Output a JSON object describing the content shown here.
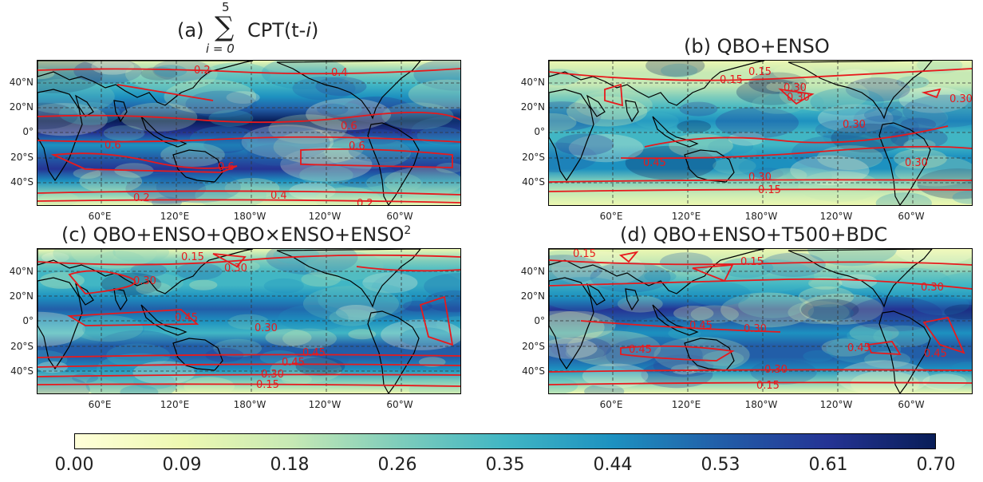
{
  "panels": [
    {
      "id": "a",
      "title_prefix": "(a)",
      "sum_upper": "5",
      "sum_lower": "i = 0",
      "sum_symbol": "∑",
      "title_suffix": "CPT(t-",
      "title_italic": "i",
      "title_end": ")"
    },
    {
      "id": "b",
      "title": "(b) QBO+ENSO"
    },
    {
      "id": "c",
      "title": "(c) QBO+ENSO+QBO×ENSO+ENSO",
      "title_sup": "2"
    },
    {
      "id": "d",
      "title": "(d) QBO+ENSO+T500+BDC"
    }
  ],
  "lat_ticks": [
    "40°N",
    "20°N",
    "0°",
    "20°S",
    "40°S"
  ],
  "lon_ticks": [
    "60°E",
    "120°E",
    "180°W",
    "120°W",
    "60°W"
  ],
  "contour_labels": {
    "a": [
      "0.2",
      "0.4",
      "0.6",
      "0.6",
      "0.6",
      "0.6",
      "0.2",
      "0.4",
      "0.2"
    ],
    "b": [
      "0.15",
      "0.15",
      "0.30",
      "0.30",
      "0.30",
      "0.30",
      "0.45",
      "0.30",
      "0.30",
      "0.15"
    ],
    "c": [
      "0.15",
      "0.30",
      "0.30",
      "0.45",
      "0.30",
      "0.45",
      "0.45",
      "0.30",
      "0.15"
    ],
    "d": [
      "0.15",
      "0.15",
      "0.30",
      "0.45",
      "0.30",
      "0.45",
      "0.45",
      "0.45",
      "0.30",
      "0.15"
    ]
  },
  "colorbar": {
    "ticks": [
      "0.00",
      "0.09",
      "0.18",
      "0.26",
      "0.35",
      "0.44",
      "0.53",
      "0.61",
      "0.70"
    ],
    "colors": [
      "#ffffd9",
      "#edf8b1",
      "#c7e9b4",
      "#7fcdbb",
      "#41b6c4",
      "#1d91c0",
      "#225ea8",
      "#253494",
      "#081d58"
    ],
    "contour_color": "#e8191c"
  },
  "chart_data": {
    "type": "heatmap",
    "value_range": [
      0.0,
      0.7
    ],
    "colormap": "YlGnBu",
    "panels": [
      "(a)",
      "(b)",
      "(c)",
      "(d)"
    ]
  }
}
